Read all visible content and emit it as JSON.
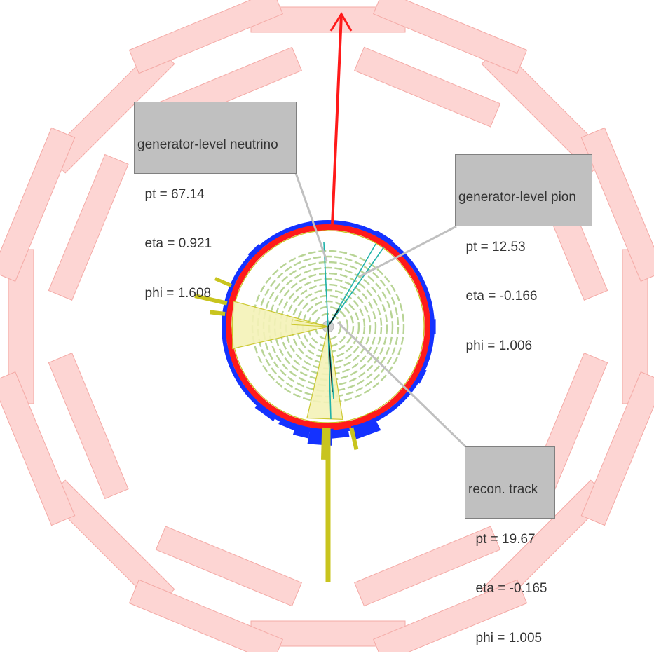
{
  "labels": {
    "neutrino": {
      "title": "generator-level neutrino",
      "pt": "  pt = 67.14",
      "eta": "  eta = 0.921",
      "phi": "  phi = 1.608"
    },
    "pion": {
      "title": "generator-level pion",
      "pt": "  pt = 12.53",
      "eta": "  eta = -0.166",
      "phi": "  phi = 1.006"
    },
    "track": {
      "title": "recon. track",
      "pt": "  pt = 19.67",
      "eta": "  eta = -0.165",
      "phi": "  phi = 1.005"
    }
  },
  "colors": {
    "muon_chambers": "#fdd5d3",
    "muon_chamber_edge": "#f4aaa6",
    "hcal": "#1432ff",
    "ecal": "#ff1a1a",
    "met_arrow": "#ff1a1a",
    "tracker": "#a6c97a",
    "jets": "#c8c41e",
    "jet_cone_fill": "#f4f2b8",
    "track": "#20b2aa",
    "connector": "#c0c0c0",
    "label_bg": "#c0c0c0"
  },
  "icons": {
    "met_arrow": "arrow-up-icon"
  }
}
